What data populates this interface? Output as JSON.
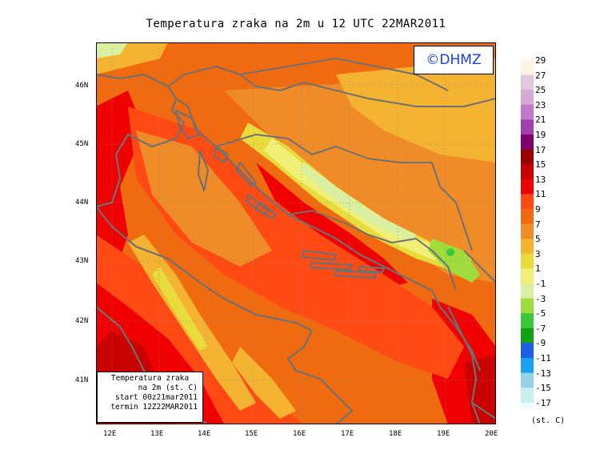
{
  "title": "Temperatura zraka na 2m u 12 UTC 22MAR2011",
  "logo": "©DHMZ",
  "info_box": {
    "line1": "Temperatura zraka",
    "line2": "na 2m (st. C)",
    "line3": "start 00z21mar2011",
    "line4": "termin 12Z22MAR2011"
  },
  "x_axis_labels": [
    "12E",
    "13E",
    "14E",
    "15E",
    "16E",
    "17E",
    "18E",
    "19E",
    "20E"
  ],
  "y_axis_labels": [
    "46N",
    "45N",
    "44N",
    "43N",
    "42N",
    "41N"
  ],
  "legend": {
    "unit": "(st. C)",
    "entries": [
      {
        "label": "29",
        "color": "#fff3e6"
      },
      {
        "label": "27",
        "color": "#e2c8dc"
      },
      {
        "label": "25",
        "color": "#d6a8d4"
      },
      {
        "label": "23",
        "color": "#c07ac8"
      },
      {
        "label": "21",
        "color": "#a040b0"
      },
      {
        "label": "19",
        "color": "#800070"
      },
      {
        "label": "17",
        "color": "#9a0000"
      },
      {
        "label": "15",
        "color": "#c80000"
      },
      {
        "label": "13",
        "color": "#f00000"
      },
      {
        "label": "11",
        "color": "#ff4a14"
      },
      {
        "label": "9",
        "color": "#f06a10"
      },
      {
        "label": "7",
        "color": "#f08c28"
      },
      {
        "label": "5",
        "color": "#f4b432"
      },
      {
        "label": "3",
        "color": "#e8dc3c"
      },
      {
        "label": "1",
        "color": "#f0f078"
      },
      {
        "label": "-1",
        "color": "#daf0a0"
      },
      {
        "label": "-3",
        "color": "#a0dc3c"
      },
      {
        "label": "-5",
        "color": "#3cc83c"
      },
      {
        "label": "-7",
        "color": "#14a014"
      },
      {
        "label": "-9",
        "color": "#1e5fe8"
      },
      {
        "label": "-11",
        "color": "#1ea0f0"
      },
      {
        "label": "-13",
        "color": "#96d2e6"
      },
      {
        "label": "-15",
        "color": "#c8eef0"
      },
      {
        "label": "-17",
        "color": "#eefcfc"
      }
    ]
  }
}
